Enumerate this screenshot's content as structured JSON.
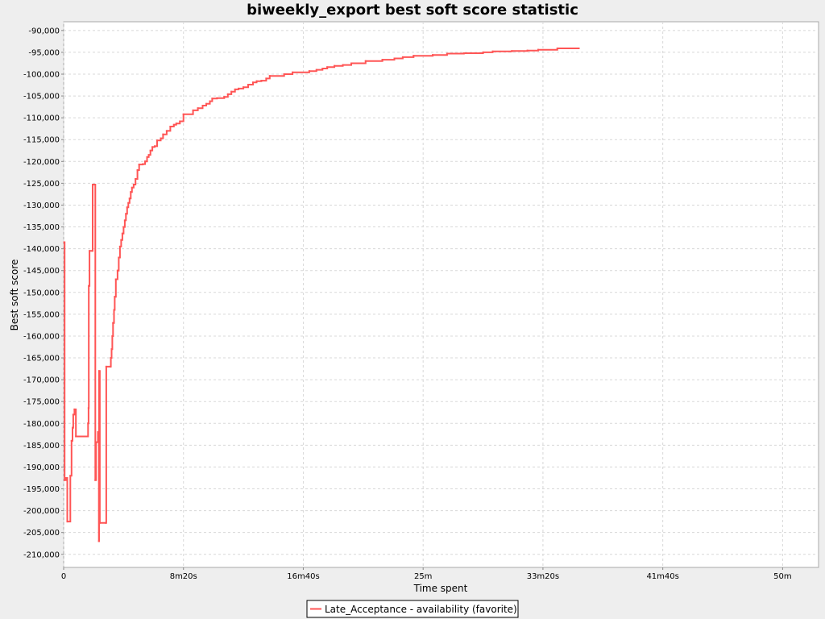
{
  "chart_data": {
    "type": "line",
    "title": "biweekly_export best soft score statistic",
    "xlabel": "Time spent",
    "ylabel": "Best soft score",
    "xlim": [
      0,
      3150
    ],
    "ylim": [
      -213000,
      -88000
    ],
    "x_ticks": [
      {
        "value": 0,
        "label": "0"
      },
      {
        "value": 500,
        "label": "8m20s"
      },
      {
        "value": 1000,
        "label": "16m40s"
      },
      {
        "value": 1500,
        "label": "25m"
      },
      {
        "value": 2000,
        "label": "33m20s"
      },
      {
        "value": 2500,
        "label": "41m40s"
      },
      {
        "value": 3000,
        "label": "50m"
      }
    ],
    "y_ticks": [
      {
        "value": -90000,
        "label": "-90,000"
      },
      {
        "value": -95000,
        "label": "-95,000"
      },
      {
        "value": -100000,
        "label": "-100,000"
      },
      {
        "value": -105000,
        "label": "-105,000"
      },
      {
        "value": -110000,
        "label": "-110,000"
      },
      {
        "value": -115000,
        "label": "-115,000"
      },
      {
        "value": -120000,
        "label": "-120,000"
      },
      {
        "value": -125000,
        "label": "-125,000"
      },
      {
        "value": -130000,
        "label": "-130,000"
      },
      {
        "value": -135000,
        "label": "-135,000"
      },
      {
        "value": -140000,
        "label": "-140,000"
      },
      {
        "value": -145000,
        "label": "-145,000"
      },
      {
        "value": -150000,
        "label": "-150,000"
      },
      {
        "value": -155000,
        "label": "-155,000"
      },
      {
        "value": -160000,
        "label": "-160,000"
      },
      {
        "value": -165000,
        "label": "-165,000"
      },
      {
        "value": -170000,
        "label": "-170,000"
      },
      {
        "value": -175000,
        "label": "-175,000"
      },
      {
        "value": -180000,
        "label": "-180,000"
      },
      {
        "value": -185000,
        "label": "-185,000"
      },
      {
        "value": -190000,
        "label": "-190,000"
      },
      {
        "value": -195000,
        "label": "-195,000"
      },
      {
        "value": -200000,
        "label": "-200,000"
      },
      {
        "value": -205000,
        "label": "-205,000"
      },
      {
        "value": -210000,
        "label": "-210,000"
      }
    ],
    "grid": true,
    "legend_position": "bottom-center",
    "series": [
      {
        "name": "Late_Acceptance - availability (favorite)",
        "color": "#ff5555",
        "step": true,
        "points": [
          [
            2,
            -138500
          ],
          [
            4,
            -193000
          ],
          [
            10,
            -192500
          ],
          [
            15,
            -202500
          ],
          [
            28,
            -192000
          ],
          [
            33,
            -184000
          ],
          [
            37,
            -181000
          ],
          [
            40,
            -178000
          ],
          [
            45,
            -176800
          ],
          [
            51,
            -183000
          ],
          [
            100,
            -183000
          ],
          [
            102,
            -180000
          ],
          [
            104,
            -176500
          ],
          [
            105,
            -148500
          ],
          [
            108,
            -140500
          ],
          [
            120,
            -140500
          ],
          [
            121,
            -125300
          ],
          [
            130,
            -125300
          ],
          [
            132,
            -193000
          ],
          [
            135,
            -184300
          ],
          [
            143,
            -182000
          ],
          [
            147,
            -207000
          ],
          [
            148,
            -168000
          ],
          [
            151,
            -202800
          ],
          [
            175,
            -202800
          ],
          [
            178,
            -167000
          ],
          [
            195,
            -167000
          ],
          [
            197,
            -165000
          ],
          [
            200,
            -163000
          ],
          [
            203,
            -160000
          ],
          [
            206,
            -157000
          ],
          [
            210,
            -154000
          ],
          [
            213,
            -151000
          ],
          [
            218,
            -147000
          ],
          [
            225,
            -145000
          ],
          [
            230,
            -142000
          ],
          [
            235,
            -139500
          ],
          [
            240,
            -138000
          ],
          [
            245,
            -136500
          ],
          [
            250,
            -135000
          ],
          [
            255,
            -133500
          ],
          [
            260,
            -132000
          ],
          [
            265,
            -130500
          ],
          [
            270,
            -129500
          ],
          [
            275,
            -128500
          ],
          [
            280,
            -127000
          ],
          [
            285,
            -126000
          ],
          [
            292,
            -125300
          ],
          [
            300,
            -124000
          ],
          [
            308,
            -122000
          ],
          [
            315,
            -120700
          ],
          [
            330,
            -120600
          ],
          [
            340,
            -120000
          ],
          [
            348,
            -119000
          ],
          [
            355,
            -118500
          ],
          [
            362,
            -117500
          ],
          [
            370,
            -116700
          ],
          [
            380,
            -116500
          ],
          [
            390,
            -115200
          ],
          [
            405,
            -114700
          ],
          [
            415,
            -113800
          ],
          [
            430,
            -113000
          ],
          [
            445,
            -112000
          ],
          [
            460,
            -111600
          ],
          [
            470,
            -111300
          ],
          [
            485,
            -110800
          ],
          [
            500,
            -109200
          ],
          [
            540,
            -108300
          ],
          [
            560,
            -107800
          ],
          [
            580,
            -107200
          ],
          [
            595,
            -106800
          ],
          [
            610,
            -106200
          ],
          [
            620,
            -105600
          ],
          [
            640,
            -105500
          ],
          [
            670,
            -105200
          ],
          [
            685,
            -104600
          ],
          [
            700,
            -104000
          ],
          [
            715,
            -103500
          ],
          [
            730,
            -103300
          ],
          [
            750,
            -103000
          ],
          [
            770,
            -102400
          ],
          [
            790,
            -101900
          ],
          [
            805,
            -101600
          ],
          [
            825,
            -101500
          ],
          [
            845,
            -101000
          ],
          [
            860,
            -100400
          ],
          [
            920,
            -100000
          ],
          [
            955,
            -99600
          ],
          [
            1025,
            -99300
          ],
          [
            1055,
            -99000
          ],
          [
            1080,
            -98700
          ],
          [
            1100,
            -98400
          ],
          [
            1130,
            -98100
          ],
          [
            1165,
            -97900
          ],
          [
            1200,
            -97500
          ],
          [
            1260,
            -97000
          ],
          [
            1330,
            -96700
          ],
          [
            1380,
            -96400
          ],
          [
            1415,
            -96100
          ],
          [
            1460,
            -95800
          ],
          [
            1540,
            -95600
          ],
          [
            1600,
            -95300
          ],
          [
            1670,
            -95200
          ],
          [
            1750,
            -95000
          ],
          [
            1790,
            -94800
          ],
          [
            1870,
            -94700
          ],
          [
            1935,
            -94600
          ],
          [
            1980,
            -94400
          ],
          [
            2060,
            -94100
          ],
          [
            2150,
            -94100
          ]
        ]
      }
    ]
  }
}
